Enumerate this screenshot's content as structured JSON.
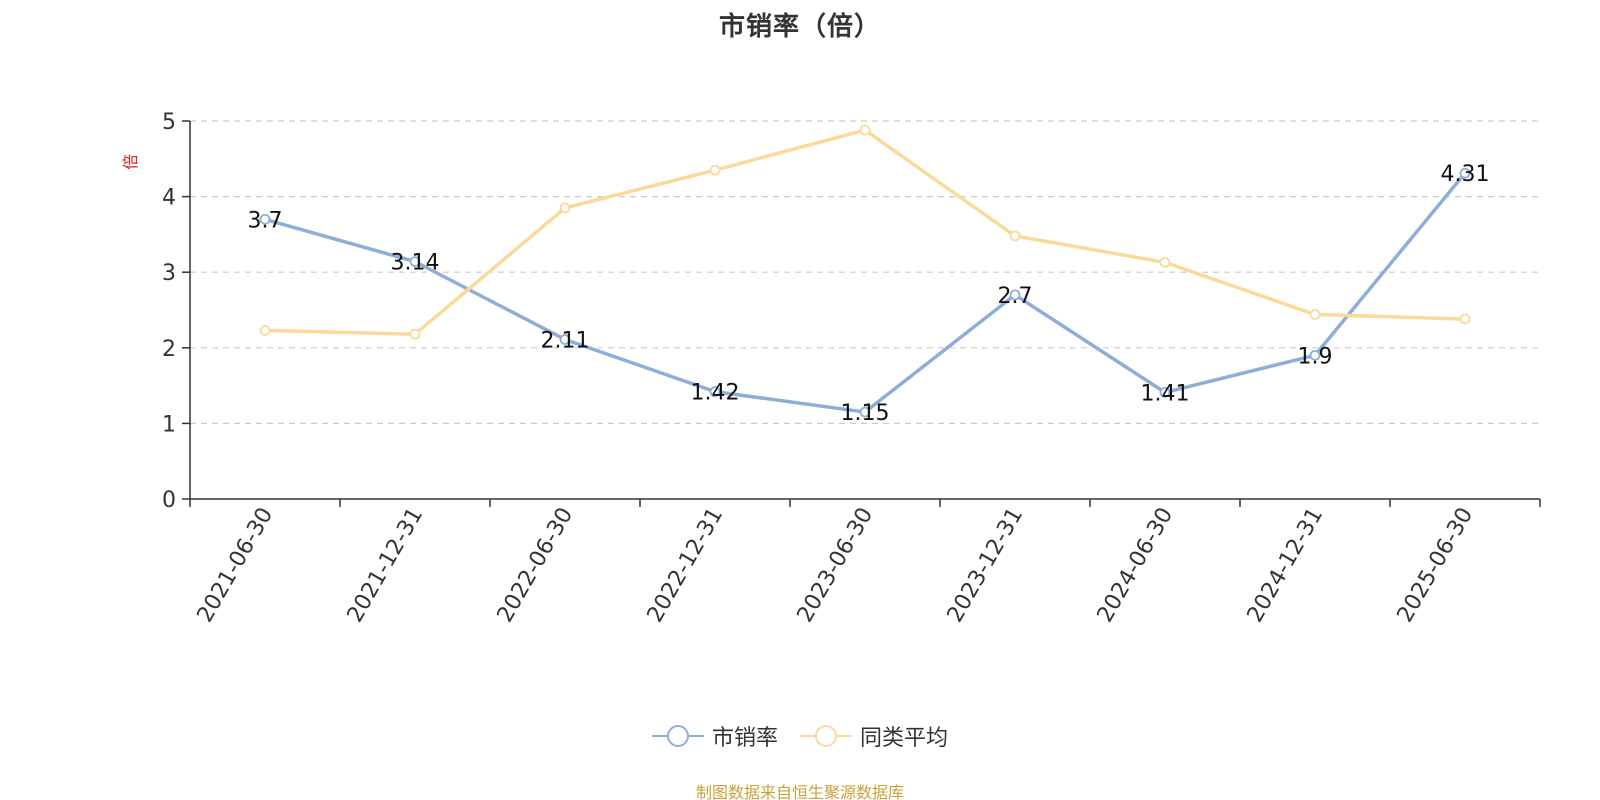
{
  "chart_data": {
    "type": "line",
    "title": "市销率（倍）",
    "ylabel": "倍",
    "categories": [
      "2021-06-30",
      "2021-12-31",
      "2022-06-30",
      "2022-12-31",
      "2023-06-30",
      "2023-12-31",
      "2024-06-30",
      "2024-12-31",
      "2025-06-30"
    ],
    "series": [
      {
        "name": "市销率",
        "color": "#8eaed9",
        "values": [
          3.7,
          3.14,
          2.11,
          1.42,
          1.15,
          2.7,
          1.41,
          1.9,
          4.31
        ],
        "labels": [
          "3.7",
          "3.14",
          "2.11",
          "1.42",
          "1.15",
          "2.7",
          "1.41",
          "1.9",
          "4.31"
        ]
      },
      {
        "name": "同类平均",
        "color": "#fbd999",
        "values": [
          2.23,
          2.18,
          3.85,
          4.35,
          4.88,
          3.48,
          3.13,
          2.44,
          2.38
        ]
      }
    ],
    "ylim": [
      0,
      5
    ],
    "yticks": [
      "0",
      "1",
      "2",
      "3",
      "4",
      "5"
    ],
    "grid": true,
    "legend_position": "bottom"
  },
  "footer": {
    "source": "制图数据来自恒生聚源数据库"
  }
}
